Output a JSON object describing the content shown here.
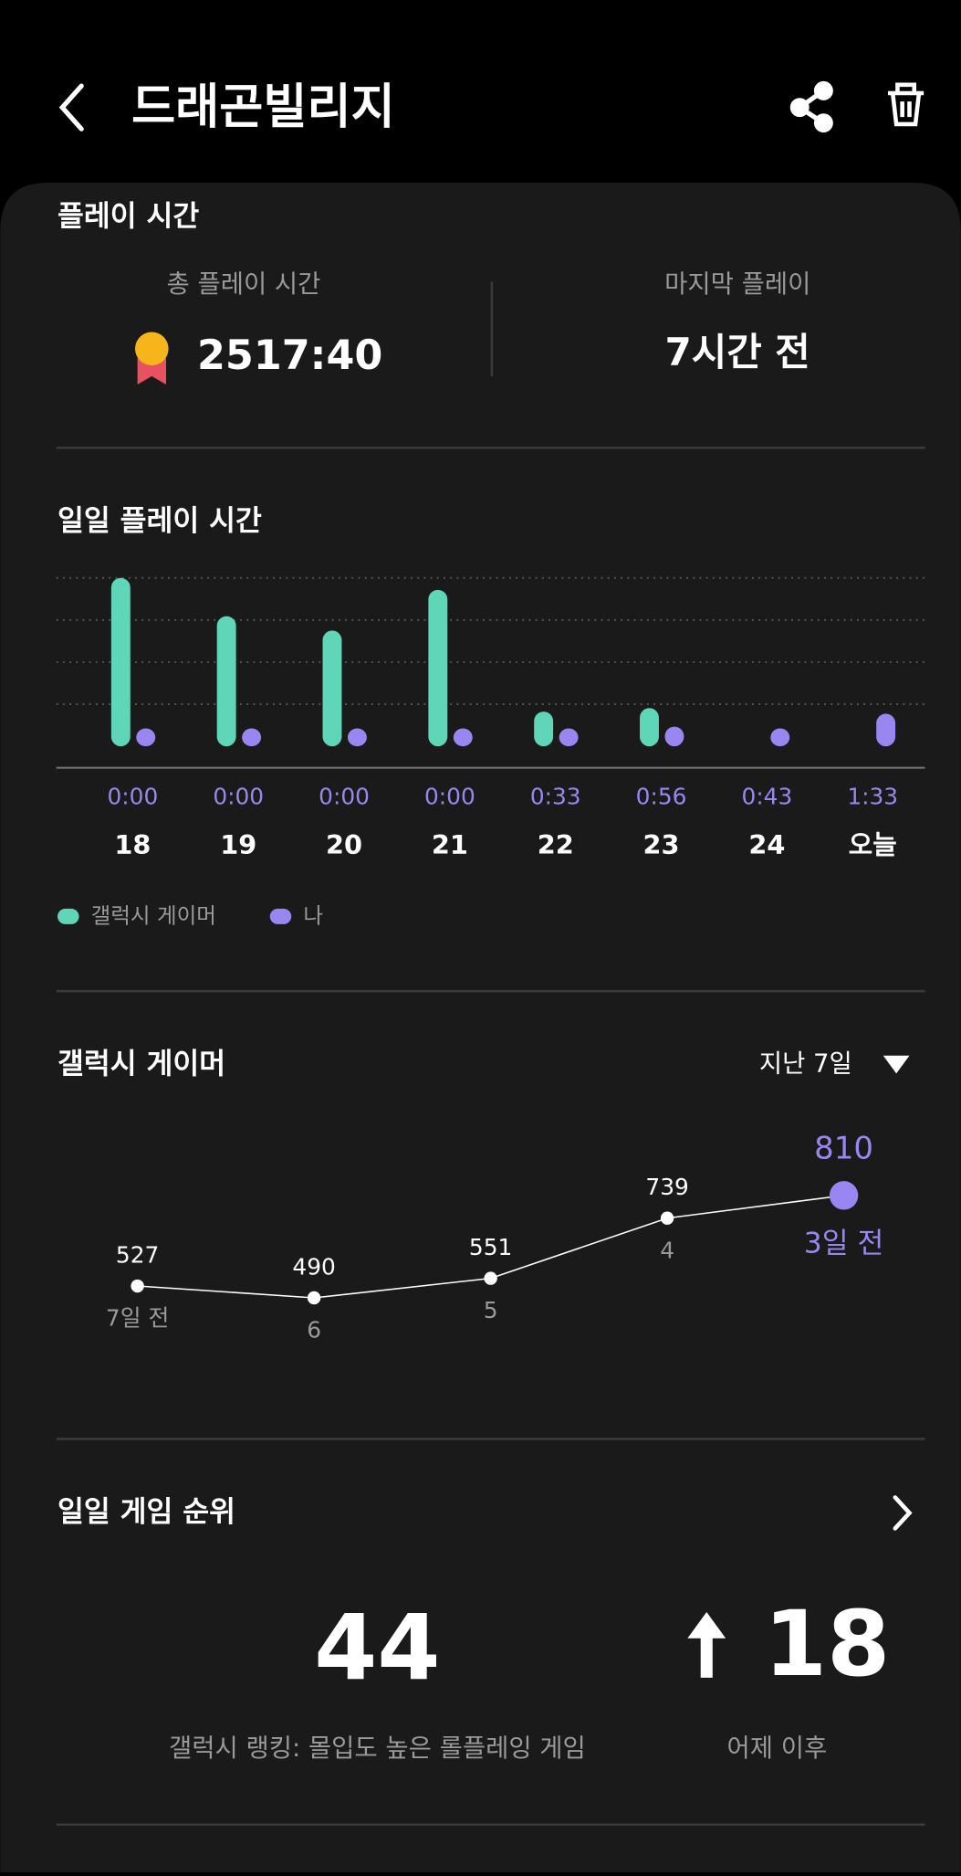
{
  "header": {
    "title": "드래곤빌리지"
  },
  "play_time": {
    "title": "플레이 시간",
    "total_label": "총 플레이 시간",
    "total_value": "2517:40",
    "last_label": "마지막 플레이",
    "last_value": "7시간 전"
  },
  "chart_data": [
    {
      "type": "bar",
      "title": "일일 플레이 시간",
      "categories": [
        "18",
        "19",
        "20",
        "21",
        "22",
        "23",
        "24",
        "오늘"
      ],
      "series": [
        {
          "name": "갤럭시 게이머",
          "color": "#5fd6b8",
          "values": [
            480,
            371,
            330,
            446,
            99,
            109,
            null,
            null
          ]
        },
        {
          "name": "나",
          "color": "#9a86f0",
          "values": [
            0,
            0,
            0,
            0,
            33,
            56,
            43,
            93
          ],
          "value_labels": [
            "0:00",
            "0:00",
            "0:00",
            "0:00",
            "0:33",
            "0:56",
            "0:43",
            "1:33"
          ]
        }
      ],
      "ylim": [
        0,
        480
      ],
      "yticks": [
        120,
        240,
        360,
        480
      ],
      "grid": true
    },
    {
      "type": "line",
      "title": "갤럭시 게이머",
      "period": "지난 7일",
      "categories": [
        "7일 전",
        "6",
        "5",
        "4",
        "3일 전"
      ],
      "values": [
        527,
        490,
        551,
        739,
        810
      ],
      "color": "#ffffff",
      "highlight_color": "#9a86f0",
      "ylim": [
        400,
        900
      ]
    }
  ],
  "ranking": {
    "title": "일일 게임 순위",
    "rank": "44",
    "rank_label": "갤럭시 랭킹: 몰입도 높은 롤플레잉 게임",
    "change": "18",
    "change_label": "어제 이후"
  }
}
